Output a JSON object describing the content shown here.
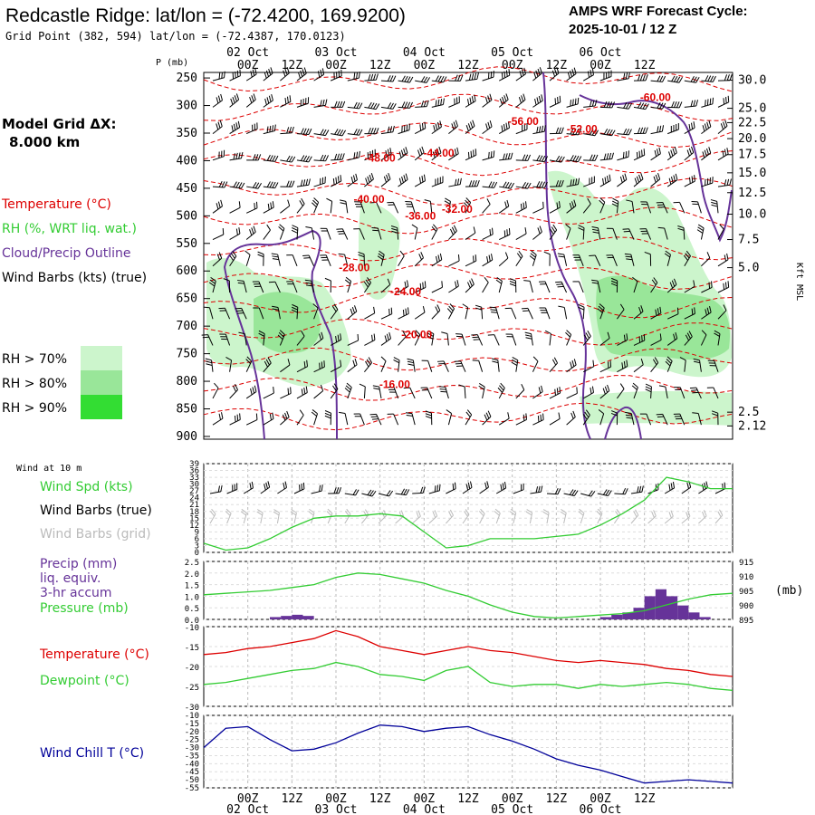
{
  "header": {
    "title": "Redcastle Ridge:  lat/lon = (-72.4200, 169.9200)",
    "grid_point": "Grid Point (382, 594) lat/lon = (-72.4387, 170.0123)",
    "cycle_line1": "AMPS WRF Forecast Cycle:",
    "cycle_line2": "2025-10-01 / 12  Z"
  },
  "model_grid": {
    "label": "Model Grid ΔX:",
    "value": "8.000 km"
  },
  "colors": {
    "temperature": "#dd0000",
    "rh": "#33cc33",
    "cloud": "#663399",
    "wind": "#000000",
    "grid_wind": "#bbbbbb",
    "pressure": "#33cc33",
    "windchill": "#000099",
    "rh70": "#ccf5cc",
    "rh80": "#99e699",
    "rh90": "#33dd33"
  },
  "legend": {
    "temperature": "Temperature (°C)",
    "rh": "RH (%, WRT liq. wat.)",
    "cloud": "Cloud/Precip Outline",
    "wind": "Wind Barbs (kts) (true)",
    "rh70": "RH > 70%",
    "rh80": "RH > 80%",
    "rh90": "RH > 90%"
  },
  "time_axis": {
    "ticks": [
      "00Z",
      "12Z",
      "00Z",
      "12Z",
      "00Z",
      "12Z",
      "00Z",
      "12Z",
      "00Z",
      "12Z"
    ],
    "dates": [
      "02 Oct",
      "03 Oct",
      "04 Oct",
      "05 Oct",
      "06 Oct"
    ]
  },
  "chart_data": [
    {
      "type": "contour",
      "name": "upper-air-cross-section",
      "ylabel": "P (mb)",
      "y2label": "Kft MSL",
      "yticks": [
        250,
        300,
        350,
        400,
        450,
        500,
        550,
        600,
        650,
        700,
        750,
        800,
        850,
        900
      ],
      "y2ticks": [
        "30.0",
        "25.0",
        "22.5",
        "20.0",
        "17.5",
        "15.0",
        "12.5",
        "10.0",
        "7.5",
        "5.0",
        "2.5",
        "2.12"
      ],
      "y2tick_pressures": [
        254,
        305,
        331,
        360,
        389,
        422,
        458,
        497,
        543,
        594,
        856,
        881
      ],
      "temperature_labels": [
        {
          "text": "-60.00",
          "t": 123,
          "p": 285
        },
        {
          "text": "-56.00",
          "t": 87,
          "p": 329
        },
        {
          "text": "-52.00",
          "t": 103,
          "p": 343
        },
        {
          "text": "-48.00",
          "t": 48,
          "p": 395
        },
        {
          "text": "-44.00",
          "t": 64,
          "p": 386
        },
        {
          "text": "-40.00",
          "t": 45,
          "p": 470
        },
        {
          "text": "-36.00",
          "t": 59,
          "p": 500
        },
        {
          "text": "-32.00",
          "t": 69,
          "p": 488
        },
        {
          "text": "-28.00",
          "t": 41,
          "p": 594
        },
        {
          "text": "-24.00",
          "t": 55,
          "p": 637
        },
        {
          "text": "-20.00",
          "t": 58,
          "p": 715
        },
        {
          "text": "-16.00",
          "t": 52,
          "p": 806
        }
      ]
    },
    {
      "type": "line",
      "name": "wind-10m",
      "title": "Wind at 10 m",
      "series_label": "Wind Spd (kts)",
      "barb_label_true": "Wind Barbs (true)",
      "barb_label_grid": "Wind Barbs (grid)",
      "yticks": [
        0,
        3,
        6,
        9,
        12,
        15,
        18,
        21,
        24,
        27,
        30,
        33,
        36,
        39
      ],
      "ylim": [
        0,
        39
      ],
      "x_hours": [
        0,
        6,
        12,
        18,
        24,
        30,
        36,
        42,
        48,
        54,
        60,
        66,
        72,
        78,
        84,
        90,
        96,
        102,
        108,
        114,
        120,
        126,
        132,
        138,
        144
      ],
      "values": [
        4,
        1,
        2,
        6,
        11,
        15,
        16,
        16,
        17,
        16,
        9,
        2,
        3,
        6,
        6,
        6,
        7,
        8,
        12,
        17,
        23,
        33,
        31,
        28,
        28
      ]
    },
    {
      "type": "line+bar",
      "name": "precip-pressure",
      "precip_label": "Precip (mm)",
      "precip_sublabel1": "liq. equiv.",
      "precip_sublabel2": "3-hr accum",
      "pressure_label": "Pressure (mb)",
      "y2label": "(mb)",
      "yticks": [
        "2.5",
        "2.0",
        "1.5",
        "1.0",
        "0.5",
        "0.0"
      ],
      "y2ticks": [
        915,
        910,
        905,
        900,
        895
      ],
      "ylim": [
        0,
        2.5
      ],
      "y2lim": [
        895,
        915
      ],
      "pressure_x_hours": [
        0,
        6,
        12,
        18,
        24,
        30,
        36,
        42,
        48,
        54,
        60,
        66,
        72,
        78,
        84,
        90,
        96,
        102,
        108,
        114,
        120,
        126,
        132,
        138,
        144
      ],
      "pressure_values": [
        903.5,
        904,
        904.5,
        905,
        906,
        907,
        909.5,
        911,
        910.5,
        909,
        907.5,
        905,
        903,
        900,
        897.5,
        896,
        895.5,
        896,
        896.5,
        897,
        898,
        900,
        902,
        903.5,
        904
      ],
      "precip_hours": [
        18,
        21,
        24,
        27,
        108,
        111,
        114,
        117,
        120,
        123,
        126,
        129,
        132,
        135
      ],
      "precip_values": [
        0.1,
        0.15,
        0.2,
        0.15,
        0.1,
        0.2,
        0.3,
        0.5,
        1.0,
        1.3,
        1.0,
        0.6,
        0.3,
        0.1
      ]
    },
    {
      "type": "line",
      "name": "temperature-dewpoint",
      "temp_label": "Temperature (°C)",
      "dew_label": "Dewpoint (°C)",
      "yticks": [
        -10,
        -15,
        -20,
        -25,
        -30
      ],
      "ylim": [
        -30,
        -10
      ],
      "x_hours": [
        0,
        6,
        12,
        18,
        24,
        30,
        36,
        42,
        48,
        54,
        60,
        66,
        72,
        78,
        84,
        90,
        96,
        102,
        108,
        114,
        120,
        126,
        132,
        138,
        144
      ],
      "temperature": [
        -17,
        -16.5,
        -15.5,
        -15,
        -14,
        -13,
        -11,
        -12.5,
        -15,
        -16,
        -17,
        -16,
        -15,
        -16,
        -16.5,
        -17.5,
        -18.5,
        -19,
        -18.5,
        -19,
        -19.5,
        -20.5,
        -21,
        -22,
        -22.5
      ],
      "dewpoint": [
        -24.5,
        -24,
        -23,
        -22,
        -21,
        -20.5,
        -19,
        -20,
        -22,
        -22.5,
        -23.5,
        -21,
        -20,
        -24,
        -25,
        -24.5,
        -24.5,
        -25.5,
        -24.5,
        -25,
        -24.5,
        -24,
        -24.5,
        -25.5,
        -26
      ]
    },
    {
      "type": "line",
      "name": "wind-chill",
      "label": "Wind Chill T (°C)",
      "yticks": [
        -10,
        -15,
        -20,
        -25,
        -30,
        -35,
        -40,
        -45,
        -50,
        -55
      ],
      "ylim": [
        -55,
        -10
      ],
      "x_hours": [
        0,
        6,
        12,
        18,
        24,
        30,
        36,
        42,
        48,
        54,
        60,
        66,
        72,
        78,
        84,
        90,
        96,
        102,
        108,
        114,
        120,
        126,
        132,
        138,
        144
      ],
      "values": [
        -30,
        -18,
        -17,
        -25,
        -32,
        -31,
        -27,
        -21,
        -16,
        -17,
        -20,
        -18,
        -17,
        -22,
        -26,
        -31,
        -37,
        -41,
        -44,
        -48,
        -52,
        -51,
        -50,
        -51,
        -52
      ]
    }
  ]
}
